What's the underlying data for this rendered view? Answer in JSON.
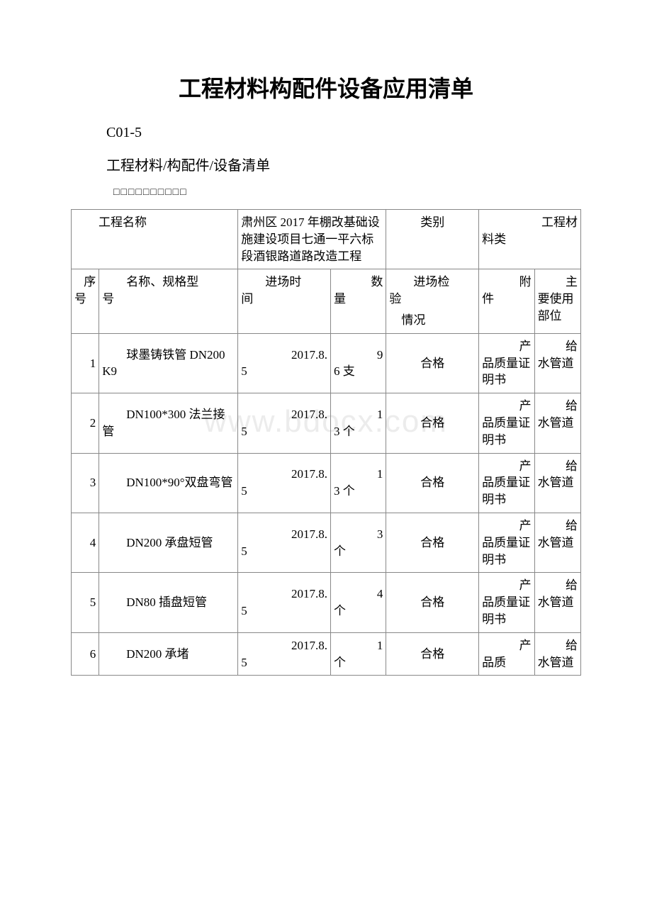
{
  "title": "工程材料构配件设备应用清单",
  "code": "C01-5",
  "subtitle": "工程材料/构配件/设备清单",
  "boxes": "□□□□□□□□□□",
  "watermark": "www.bdocx.com",
  "header_row": {
    "project_label_1": "工程名",
    "project_label_2": "称",
    "project_name": "肃州区 2017 年棚改基础设施建设项目七通一平六标段酒银路道路改造工程",
    "category_label": "类别",
    "material_label_1": "工程材",
    "material_label_2": "料类"
  },
  "columns": {
    "seq_1": "序",
    "seq_2": "号",
    "name_1": "名称、规格型",
    "name_2": "号",
    "date_1": "进场时",
    "date_2": "间",
    "qty_1": "数",
    "qty_2": "量",
    "insp_1": "进场检",
    "insp_2": "验",
    "insp_3": "情况",
    "att_1": "附",
    "att_2": "件",
    "use_1": "主",
    "use_2": "要使用部位"
  },
  "rows": [
    {
      "seq": "1",
      "name": "球墨铸铁管 DN200 K9",
      "date": "2017.8.5",
      "qty_top": "9",
      "qty_unit": "6 支",
      "insp": "合格",
      "att_top": "产",
      "att_rest": "品质量证明书",
      "use_top": "给",
      "use_rest": "水管道"
    },
    {
      "seq": "2",
      "name": "DN100*300 法兰接管",
      "date": "2017.8.5",
      "qty_top": "1",
      "qty_unit": "3 个",
      "insp": "合格",
      "att_top": "产",
      "att_rest": "品质量证明书",
      "use_top": "给",
      "use_rest": "水管道"
    },
    {
      "seq": "3",
      "name": "DN100*90°双盘弯管",
      "date": "2017.8.5",
      "qty_top": "1",
      "qty_unit": "3 个",
      "insp": "合格",
      "att_top": "产",
      "att_rest": "品质量证明书",
      "use_top": "给",
      "use_rest": "水管道"
    },
    {
      "seq": "4",
      "name": "DN200 承盘短管",
      "date": "2017.8.5",
      "qty_top": "3",
      "qty_unit": "个",
      "insp": "合格",
      "att_top": "产",
      "att_rest": "品质量证明书",
      "use_top": "给",
      "use_rest": "水管道"
    },
    {
      "seq": "5",
      "name": "DN80 插盘短管",
      "date": "2017.8.5",
      "qty_top": "4",
      "qty_unit": "个",
      "insp": "合格",
      "att_top": "产",
      "att_rest": "品质量证明书",
      "use_top": "给",
      "use_rest": "水管道"
    },
    {
      "seq": "6",
      "name": "DN200 承堵",
      "date": "2017.8.5",
      "qty_top": "1",
      "qty_unit": "个",
      "insp": "合格",
      "att_top": "产",
      "att_rest": "品质",
      "use_top": "给",
      "use_rest": "水管道"
    }
  ]
}
